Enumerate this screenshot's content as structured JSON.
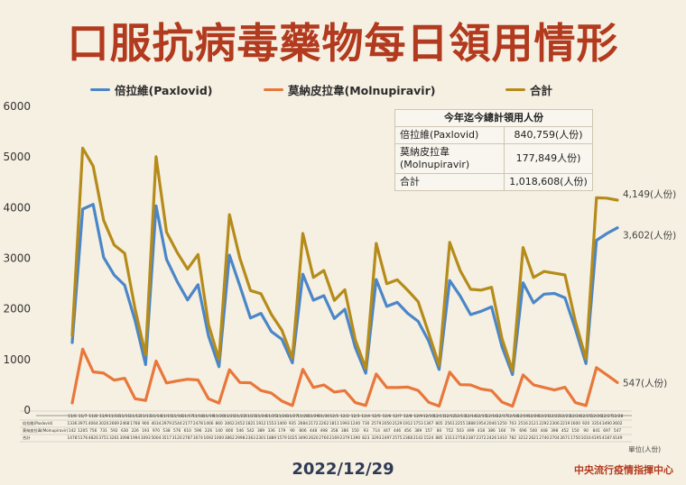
{
  "title": "口服抗病毒藥物每日領用情形",
  "date": "2022/12/29",
  "source": "中央流行疫情指揮中心",
  "unit": "單位(人份)",
  "colors": {
    "paxlovid": "#4b86c8",
    "molnupiravir": "#e8773b",
    "total": "#b58b1a",
    "title": "#b23a1e"
  },
  "legend": [
    {
      "label": "倍拉維(Paxlovid)"
    },
    {
      "label": "莫納皮拉韋(Molnupiravir)"
    },
    {
      "label": "合計"
    }
  ],
  "summary": {
    "header": "今年迄今總計領用人份",
    "rows": [
      {
        "name": "倍拉維(Paxlovid)",
        "value": "840,759(人份)"
      },
      {
        "name": "莫納皮拉韋(Molnupiravir)",
        "value": "177,849人份)"
      },
      {
        "name": "合計",
        "value": "1,018,608(人份)"
      }
    ]
  },
  "end_labels": {
    "total": "4,149(人份)",
    "paxlovid": "3,602(人份)",
    "molnupiravir": "547(人份)"
  },
  "row_labels": [
    "倍拉維(Paxlovid)",
    "莫納皮拉韋(Molnupiravir)",
    "合計"
  ],
  "chart_data": {
    "type": "line",
    "xlabel": "",
    "ylabel": "",
    "ylim": [
      0,
      6000
    ],
    "yticks": [
      0,
      1000,
      2000,
      3000,
      4000,
      5000,
      6000
    ],
    "grid": false,
    "categories": [
      "11/6",
      "11/7",
      "11/8",
      "11/9",
      "11/10",
      "11/11",
      "11/12",
      "11/13",
      "11/14",
      "11/15",
      "11/16",
      "11/17",
      "11/18",
      "11/19",
      "11/20",
      "11/21",
      "11/22",
      "11/23",
      "11/24",
      "11/25",
      "11/26",
      "11/27",
      "11/28",
      "11/29",
      "11/30",
      "12/1",
      "12/2",
      "12/3",
      "12/4",
      "12/5",
      "12/6",
      "12/7",
      "12/8",
      "12/9",
      "12/10",
      "12/11",
      "12/12",
      "12/13",
      "12/14",
      "12/15",
      "12/16",
      "12/17",
      "12/18",
      "12/19",
      "12/20",
      "12/21",
      "12/22",
      "12/23",
      "12/24",
      "12/25",
      "12/26",
      "12/27",
      "12/28"
    ],
    "series": [
      {
        "name": "倍拉維(Paxlovid)",
        "values": [
          1336,
          3971,
          4064,
          3020,
          2669,
          2468,
          1768,
          900,
          4034,
          2979,
          2544,
          2177,
          2478,
          1466,
          860,
          3062,
          2452,
          1821,
          1912,
          1553,
          1400,
          935,
          2684,
          2172,
          2262,
          1811,
          1993,
          1240,
          730,
          2579,
          2050,
          2129,
          1912,
          1753,
          1367,
          805,
          2561,
          2255,
          1888,
          1954,
          2040,
          1250,
          703,
          2516,
          2121,
          2292,
          2306,
          2219,
          1600,
          920,
          3354,
          3490,
          3602
        ]
      },
      {
        "name": "莫納皮拉韋(Molnupiravir)",
        "values": [
          142,
          1205,
          756,
          731,
          592,
          630,
          226,
          193,
          970,
          538,
          576,
          610,
          596,
          226,
          140,
          800,
          546,
          542,
          389,
          336,
          179,
          90,
          806,
          448,
          498,
          358,
          386,
          150,
          93,
          714,
          447,
          446,
          456,
          389,
          157,
          80,
          752,
          503,
          499,
          418,
          386,
          160,
          79,
          696,
          500,
          448,
          398,
          452,
          150,
          90,
          841,
          697,
          547
        ]
      },
      {
        "name": "合計",
        "values": [
          1478,
          5176,
          4820,
          3751,
          3261,
          3098,
          1994,
          1093,
          5004,
          3517,
          3120,
          2787,
          3074,
          1692,
          1000,
          3862,
          2998,
          2363,
          2301,
          1889,
          1579,
          1025,
          3490,
          2620,
          2760,
          2169,
          2379,
          1390,
          823,
          3293,
          2497,
          2575,
          2368,
          2142,
          1524,
          885,
          3313,
          2758,
          2387,
          2372,
          2426,
          1410,
          782,
          3212,
          2621,
          2740,
          2704,
          2671,
          1750,
          1010,
          4195,
          4187,
          4149
        ]
      }
    ]
  }
}
